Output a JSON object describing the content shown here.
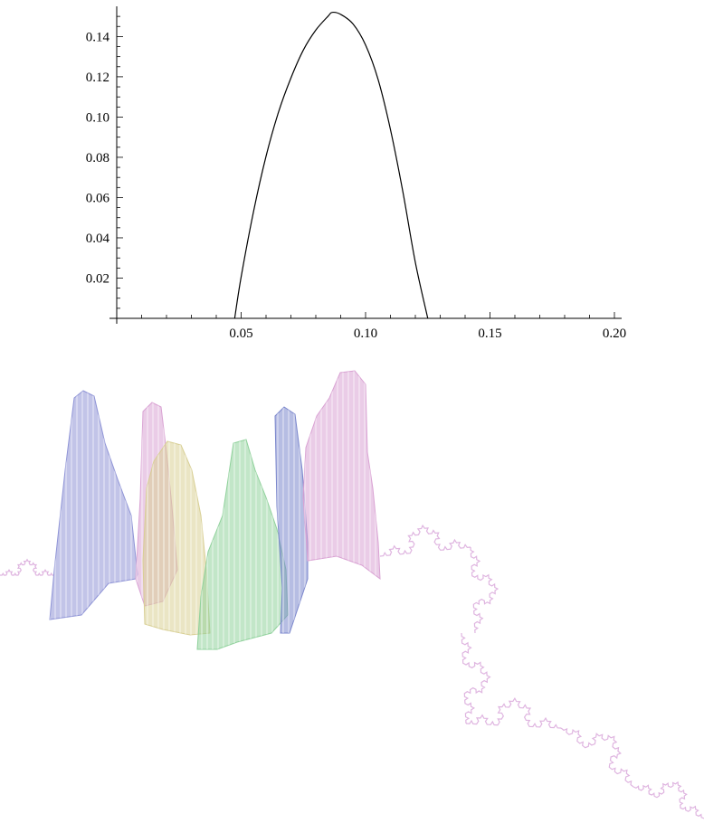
{
  "chart_data": {
    "type": "line",
    "title": "",
    "xlabel": "",
    "ylabel": "",
    "xlim": [
      0,
      0.2
    ],
    "ylim": [
      0,
      0.155
    ],
    "x_ticks": [
      0.05,
      0.1,
      0.15,
      0.2
    ],
    "x_tick_labels": [
      "0.05",
      "0.10",
      "0.15",
      "0.20"
    ],
    "y_ticks": [
      0.02,
      0.04,
      0.06,
      0.08,
      0.1,
      0.12,
      0.14
    ],
    "y_tick_labels": [
      "0.02",
      "0.04",
      "0.06",
      "0.08",
      "0.10",
      "0.12",
      "0.14"
    ],
    "grid": false,
    "series": [
      {
        "x": [
          0.0474,
          0.05,
          0.055,
          0.06,
          0.065,
          0.07,
          0.075,
          0.08,
          0.085,
          0.0866,
          0.09,
          0.095,
          0.1,
          0.105,
          0.11,
          0.115,
          0.12,
          0.125
        ],
        "values": [
          0.0,
          0.0206,
          0.0532,
          0.0805,
          0.1024,
          0.1194,
          0.1333,
          0.1432,
          0.1502,
          0.152,
          0.151,
          0.1462,
          0.1358,
          0.1188,
          0.0938,
          0.0628,
          0.0278,
          0.0
        ]
      }
    ],
    "colors": {
      "line": "#000000",
      "axis": "#000000"
    }
  },
  "illustration": {
    "description_free": true,
    "colors": {
      "blue": "#8f94d6",
      "pink": "#d9a2d3",
      "yellow": "#d8cf94",
      "green": "#8fd19b",
      "blue_dark": "#7a86cc",
      "curve": "#d7a3d8"
    }
  }
}
